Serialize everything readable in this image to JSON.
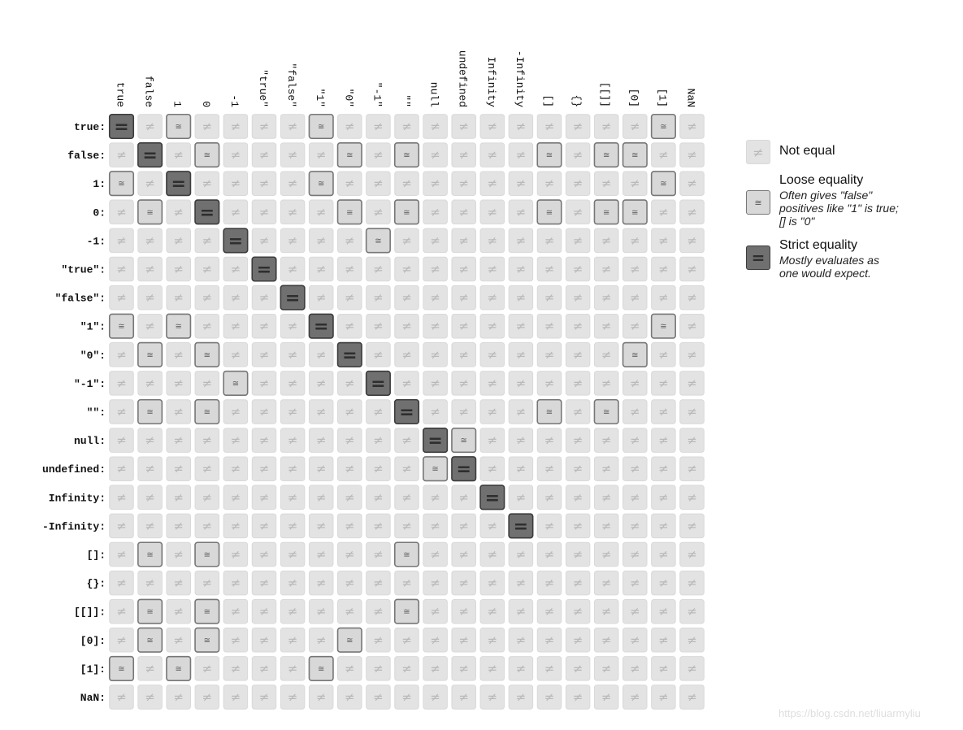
{
  "chart_data": {
    "type": "heatmap",
    "title": "",
    "labels": [
      "true",
      "false",
      "1",
      "0",
      "-1",
      "\"true\"",
      "\"false\"",
      "\"1\"",
      "\"0\"",
      "\"-1\"",
      "\"\"",
      "null",
      "undefined",
      "Infinity",
      "-Infinity",
      "[]",
      "{}",
      "[[]]",
      "[0]",
      "[1]",
      "NaN"
    ],
    "row_suffix": ":",
    "symbols": {
      "0": "≠",
      "1": "≅",
      "2": "="
    },
    "matrix": [
      [
        2,
        0,
        1,
        0,
        0,
        0,
        0,
        1,
        0,
        0,
        0,
        0,
        0,
        0,
        0,
        0,
        0,
        0,
        0,
        1,
        0
      ],
      [
        0,
        2,
        0,
        1,
        0,
        0,
        0,
        0,
        1,
        0,
        1,
        0,
        0,
        0,
        0,
        1,
        0,
        1,
        1,
        0,
        0
      ],
      [
        1,
        0,
        2,
        0,
        0,
        0,
        0,
        1,
        0,
        0,
        0,
        0,
        0,
        0,
        0,
        0,
        0,
        0,
        0,
        1,
        0
      ],
      [
        0,
        1,
        0,
        2,
        0,
        0,
        0,
        0,
        1,
        0,
        1,
        0,
        0,
        0,
        0,
        1,
        0,
        1,
        1,
        0,
        0
      ],
      [
        0,
        0,
        0,
        0,
        2,
        0,
        0,
        0,
        0,
        1,
        0,
        0,
        0,
        0,
        0,
        0,
        0,
        0,
        0,
        0,
        0
      ],
      [
        0,
        0,
        0,
        0,
        0,
        2,
        0,
        0,
        0,
        0,
        0,
        0,
        0,
        0,
        0,
        0,
        0,
        0,
        0,
        0,
        0
      ],
      [
        0,
        0,
        0,
        0,
        0,
        0,
        2,
        0,
        0,
        0,
        0,
        0,
        0,
        0,
        0,
        0,
        0,
        0,
        0,
        0,
        0
      ],
      [
        1,
        0,
        1,
        0,
        0,
        0,
        0,
        2,
        0,
        0,
        0,
        0,
        0,
        0,
        0,
        0,
        0,
        0,
        0,
        1,
        0
      ],
      [
        0,
        1,
        0,
        1,
        0,
        0,
        0,
        0,
        2,
        0,
        0,
        0,
        0,
        0,
        0,
        0,
        0,
        0,
        1,
        0,
        0
      ],
      [
        0,
        0,
        0,
        0,
        1,
        0,
        0,
        0,
        0,
        2,
        0,
        0,
        0,
        0,
        0,
        0,
        0,
        0,
        0,
        0,
        0
      ],
      [
        0,
        1,
        0,
        1,
        0,
        0,
        0,
        0,
        0,
        0,
        2,
        0,
        0,
        0,
        0,
        1,
        0,
        1,
        0,
        0,
        0
      ],
      [
        0,
        0,
        0,
        0,
        0,
        0,
        0,
        0,
        0,
        0,
        0,
        2,
        1,
        0,
        0,
        0,
        0,
        0,
        0,
        0,
        0
      ],
      [
        0,
        0,
        0,
        0,
        0,
        0,
        0,
        0,
        0,
        0,
        0,
        1,
        2,
        0,
        0,
        0,
        0,
        0,
        0,
        0,
        0
      ],
      [
        0,
        0,
        0,
        0,
        0,
        0,
        0,
        0,
        0,
        0,
        0,
        0,
        0,
        2,
        0,
        0,
        0,
        0,
        0,
        0,
        0
      ],
      [
        0,
        0,
        0,
        0,
        0,
        0,
        0,
        0,
        0,
        0,
        0,
        0,
        0,
        0,
        2,
        0,
        0,
        0,
        0,
        0,
        0
      ],
      [
        0,
        1,
        0,
        1,
        0,
        0,
        0,
        0,
        0,
        0,
        1,
        0,
        0,
        0,
        0,
        0,
        0,
        0,
        0,
        0,
        0
      ],
      [
        0,
        0,
        0,
        0,
        0,
        0,
        0,
        0,
        0,
        0,
        0,
        0,
        0,
        0,
        0,
        0,
        0,
        0,
        0,
        0,
        0
      ],
      [
        0,
        1,
        0,
        1,
        0,
        0,
        0,
        0,
        0,
        0,
        1,
        0,
        0,
        0,
        0,
        0,
        0,
        0,
        0,
        0,
        0
      ],
      [
        0,
        1,
        0,
        1,
        0,
        0,
        0,
        0,
        1,
        0,
        0,
        0,
        0,
        0,
        0,
        0,
        0,
        0,
        0,
        0,
        0
      ],
      [
        1,
        0,
        1,
        0,
        0,
        0,
        0,
        1,
        0,
        0,
        0,
        0,
        0,
        0,
        0,
        0,
        0,
        0,
        0,
        0,
        0
      ],
      [
        0,
        0,
        0,
        0,
        0,
        0,
        0,
        0,
        0,
        0,
        0,
        0,
        0,
        0,
        0,
        0,
        0,
        0,
        0,
        0,
        0
      ]
    ],
    "colors": {
      "0": {
        "fill": "#e3e3e3",
        "stroke": "#d9d9d9",
        "glyph": "#b9b9b9"
      },
      "1": {
        "fill": "#d8d8d8",
        "stroke": "#777777",
        "glyph": "#555555"
      },
      "2": {
        "fill": "#707070",
        "stroke": "#3c3c3c",
        "glyph": "#2e2e2e"
      }
    },
    "legend": {
      "placement": "right",
      "items": [
        {
          "key": "0",
          "title": "Not equal",
          "description": ""
        },
        {
          "key": "1",
          "title": "Loose equality",
          "description": "Often gives \"false\" positives like \"1\" is true; [] is \"0\""
        },
        {
          "key": "2",
          "title": "Strict equality",
          "description": "Mostly evaluates as one would expect."
        }
      ]
    }
  },
  "watermark": "https://blog.csdn.net/liuarmyliu"
}
